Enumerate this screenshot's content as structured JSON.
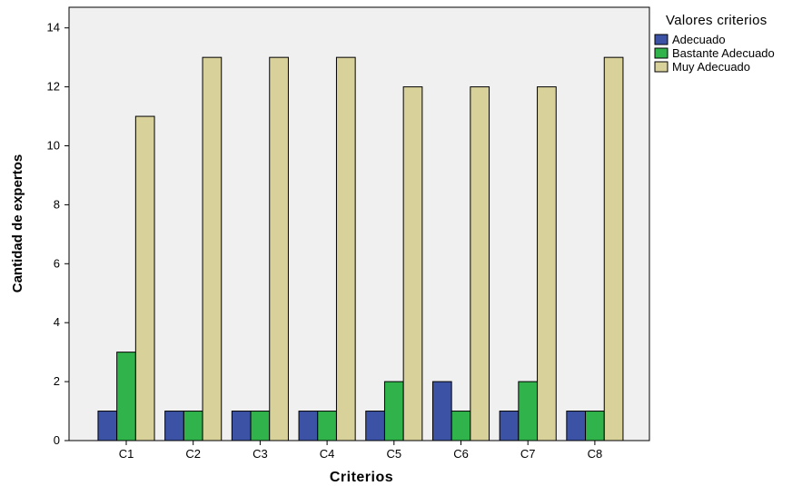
{
  "chart_data": {
    "type": "bar",
    "categories": [
      "C1",
      "C2",
      "C3",
      "C4",
      "C5",
      "C6",
      "C7",
      "C8"
    ],
    "series": [
      {
        "name": "Adecuado",
        "color": "#3c52a4",
        "values": [
          1,
          1,
          1,
          1,
          1,
          2,
          1,
          1
        ]
      },
      {
        "name": "Bastante Adecuado",
        "color": "#2fb34a",
        "values": [
          3,
          1,
          1,
          1,
          2,
          1,
          2,
          1
        ]
      },
      {
        "name": "Muy Adecuado",
        "color": "#d9d19a",
        "values": [
          11,
          13,
          13,
          13,
          12,
          12,
          12,
          13
        ]
      }
    ],
    "xlabel": "Criterios",
    "ylabel": "Cantidad de expertos",
    "ylim": [
      0,
      14.7
    ],
    "yticks": [
      0,
      2,
      4,
      6,
      8,
      10,
      12,
      14
    ],
    "legend_title": "Valores criterios",
    "legend_position": "right-top",
    "plot_background": "#f0f0f0",
    "grid": false
  }
}
